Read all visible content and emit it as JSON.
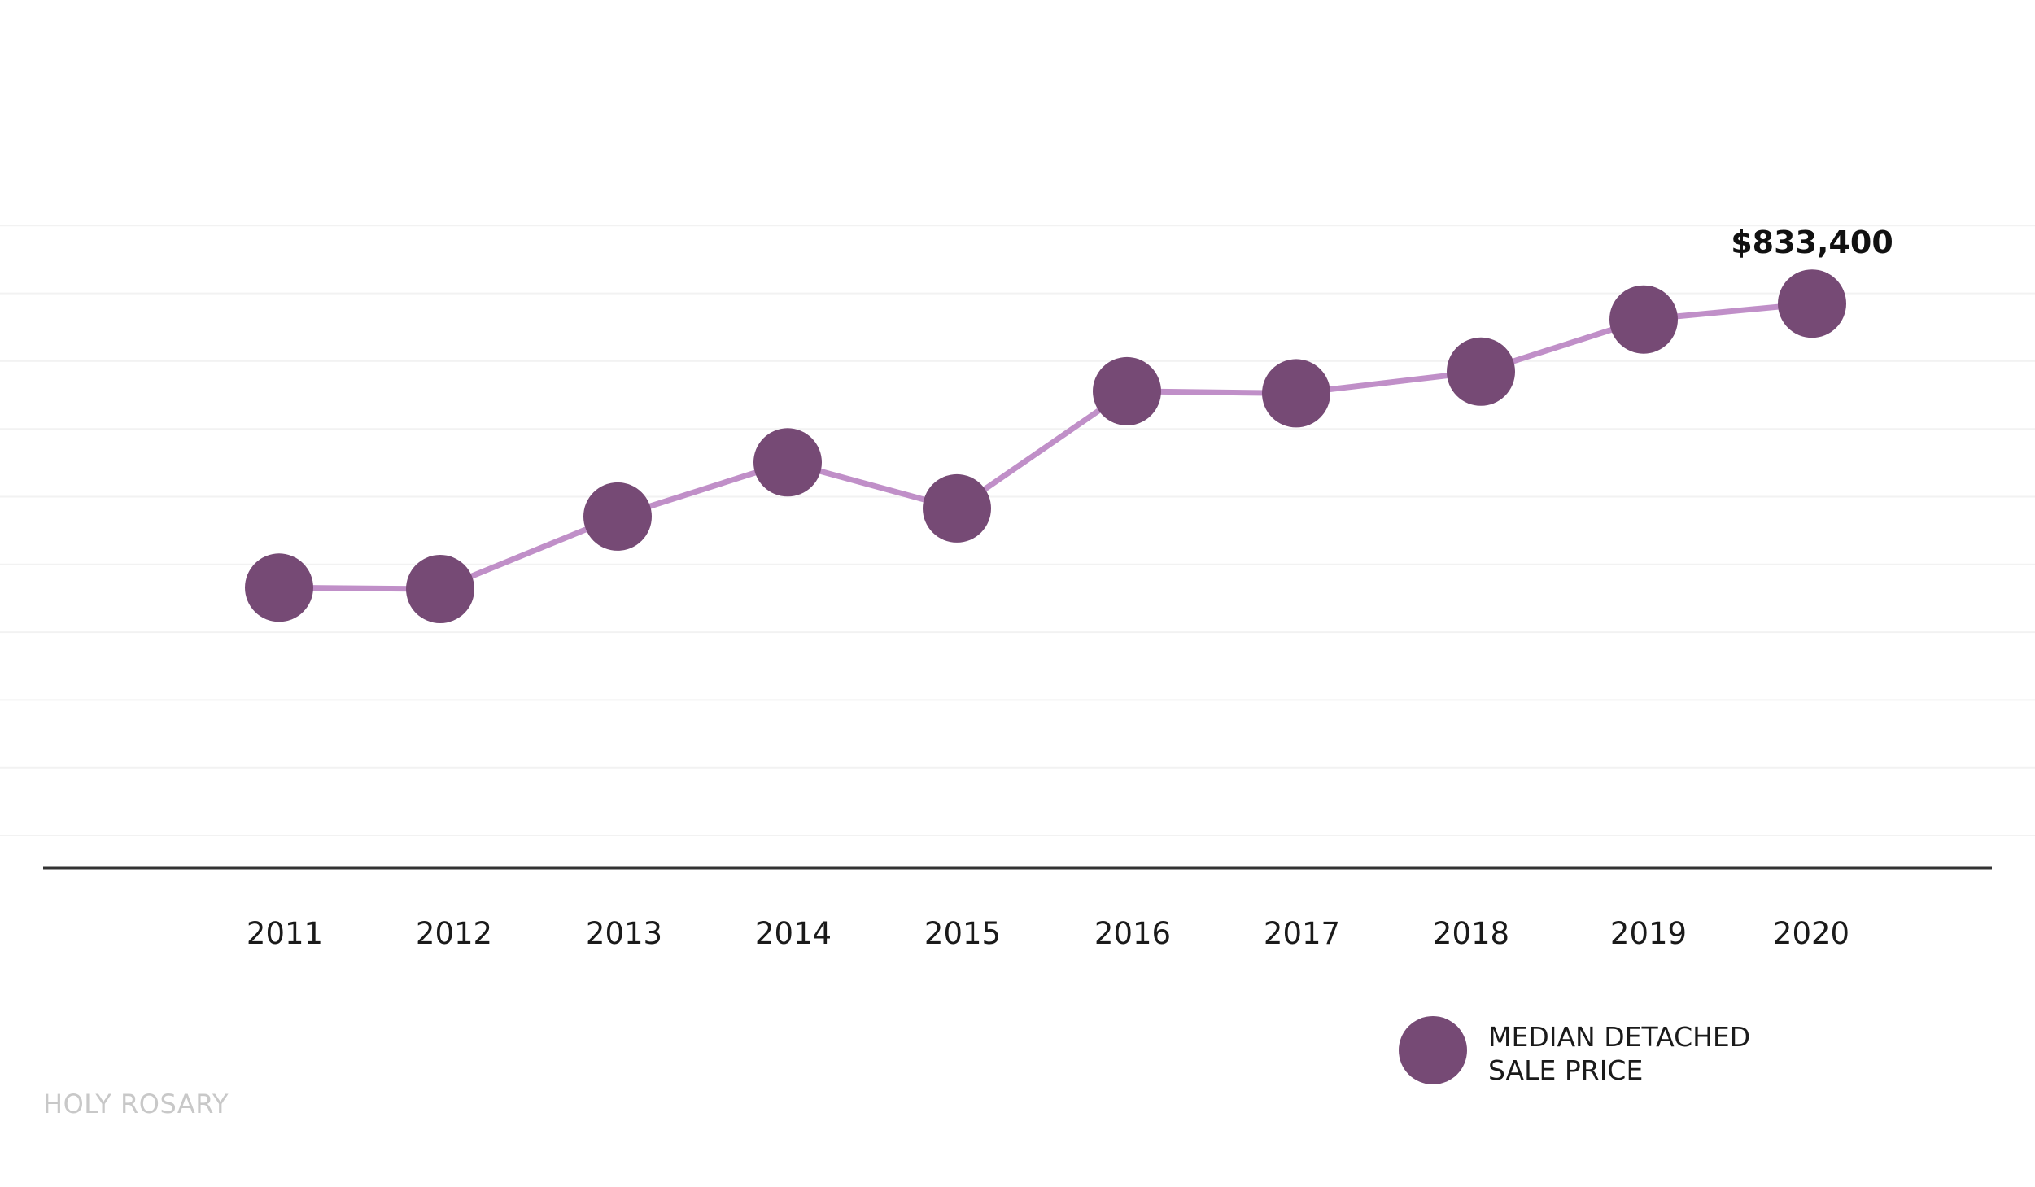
{
  "chart_data": {
    "type": "line",
    "x": [
      "2011",
      "2012",
      "2013",
      "2014",
      "2015",
      "2016",
      "2017",
      "2018",
      "2019",
      "2020"
    ],
    "series": [
      {
        "name": "MEDIAN DETACHED SALE PRICE",
        "name_lines": [
          "MEDIAN DETACHED",
          "SALE PRICE"
        ],
        "values": [
          414000,
          412000,
          519000,
          599000,
          531000,
          704000,
          701000,
          733000,
          810000,
          833400
        ]
      }
    ],
    "annotation": {
      "index": 9,
      "text": "$833,400"
    },
    "ylim": [
      0,
      1100000
    ],
    "grid": true,
    "legend_position": "bottom-right",
    "colors": {
      "line": "#c08fc8",
      "marker": "#764a75",
      "axis": "#333333",
      "grid": "#f2f2f2"
    }
  },
  "footer": {
    "watermark": "HOLY ROSARY"
  }
}
